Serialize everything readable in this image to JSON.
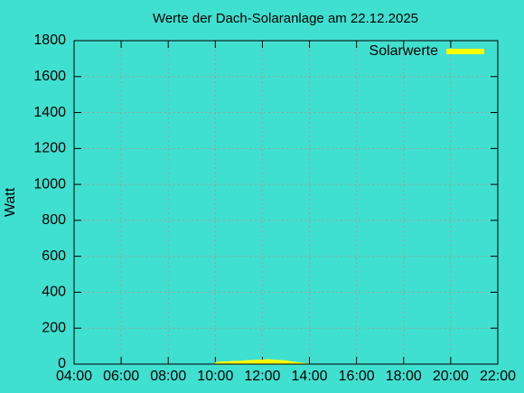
{
  "chart_data": {
    "type": "area",
    "title": "Werte der Dach-Solaranlage am 22.12.2025",
    "y_label": "Watt",
    "x": [
      10.0,
      10.25,
      10.5,
      10.75,
      11.0,
      11.25,
      11.5,
      11.75,
      12.0,
      12.25,
      12.5,
      12.75,
      13.0,
      13.25,
      13.5,
      13.75,
      14.0
    ],
    "series": [
      {
        "name": "Solarwerte",
        "color": "#ffff00",
        "values": [
          8,
          12,
          12,
          15,
          15,
          18,
          20,
          22,
          22,
          25,
          22,
          20,
          18,
          12,
          8,
          4,
          0
        ]
      }
    ],
    "xlim": [
      4,
      22
    ],
    "xticks": [
      {
        "value": 4,
        "label": "04:00"
      },
      {
        "value": 6,
        "label": "06:00"
      },
      {
        "value": 8,
        "label": "08:00"
      },
      {
        "value": 10,
        "label": "10:00"
      },
      {
        "value": 12,
        "label": "12:00"
      },
      {
        "value": 14,
        "label": "14:00"
      },
      {
        "value": 16,
        "label": "16:00"
      },
      {
        "value": 18,
        "label": "18:00"
      },
      {
        "value": 20,
        "label": "20:00"
      },
      {
        "value": 22,
        "label": "22:00"
      }
    ],
    "ylim": [
      0,
      1800
    ],
    "yticks": [
      0,
      200,
      400,
      600,
      800,
      1000,
      1200,
      1400,
      1600,
      1800
    ],
    "grid": true,
    "legend": "top-right"
  }
}
